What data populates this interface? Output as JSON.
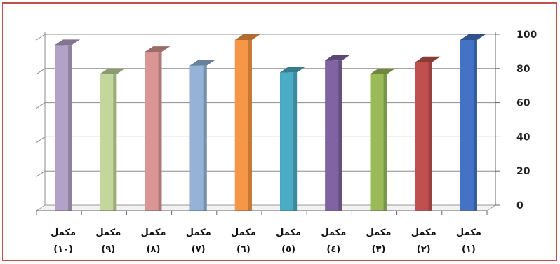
{
  "chart_data": {
    "type": "bar",
    "title": "",
    "xlabel": "",
    "ylabel": "",
    "ylim": [
      0,
      100
    ],
    "yticks": [
      0,
      20,
      40,
      60,
      80,
      100
    ],
    "grid": true,
    "legend": "none",
    "categories": [
      {
        "line1": "مكمل",
        "line2": "(١)"
      },
      {
        "line1": "مكمل",
        "line2": "(٢)"
      },
      {
        "line1": "مكمل",
        "line2": "(٣)"
      },
      {
        "line1": "مكمل",
        "line2": "(٤)"
      },
      {
        "line1": "مكمل",
        "line2": "(٥)"
      },
      {
        "line1": "مكمل",
        "line2": "(٦)"
      },
      {
        "line1": "مكمل",
        "line2": "(٧)"
      },
      {
        "line1": "مكمل",
        "line2": "(٨)"
      },
      {
        "line1": "مكمل",
        "line2": "(٩)"
      },
      {
        "line1": "مكمل",
        "line2": "(١٠)"
      }
    ],
    "values": [
      100,
      87,
      80,
      88,
      81,
      100,
      85,
      93,
      80,
      97
    ],
    "colors": [
      "#4472c4",
      "#c0504d",
      "#9bbb59",
      "#8064a2",
      "#4bacc6",
      "#f79646",
      "#95b3d7",
      "#d99694",
      "#c3d69b",
      "#b3a2c7"
    ]
  }
}
